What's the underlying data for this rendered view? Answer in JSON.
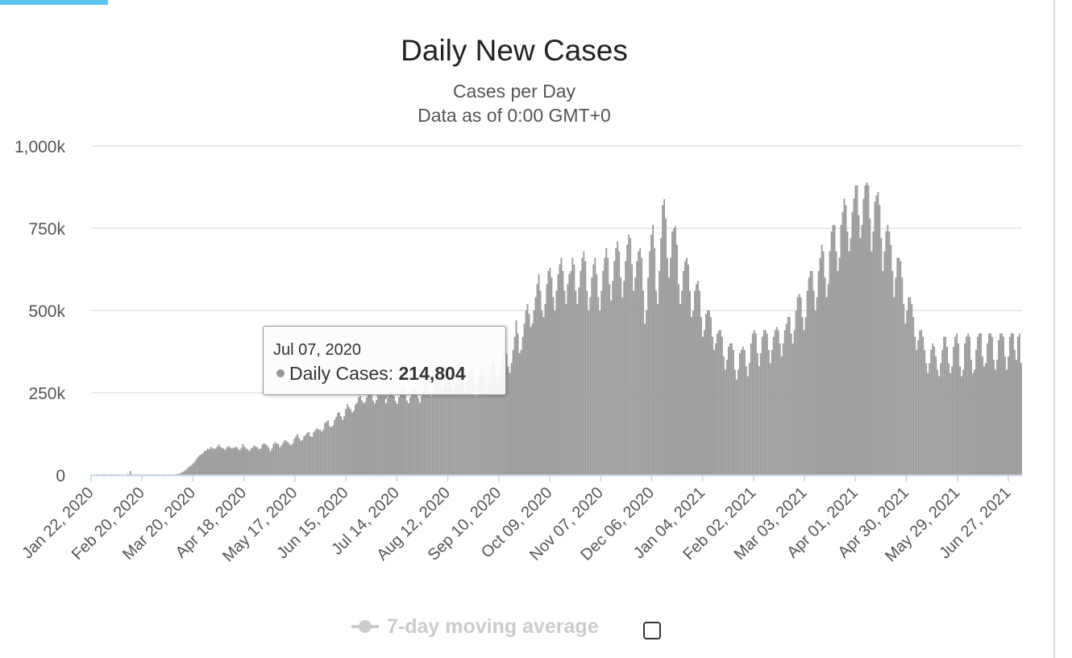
{
  "page": {
    "accent_color": "#5bc4f0"
  },
  "chart_data": {
    "type": "bar",
    "title": "Daily New Cases",
    "subtitle": "Cases per Day",
    "data_note": "Data as of 0:00 GMT+0",
    "xlabel": "",
    "ylabel": "",
    "ylim": [
      0,
      1000000
    ],
    "grid": true,
    "bar_color": "#999999",
    "y_ticks": [
      {
        "value": 0,
        "label": "0"
      },
      {
        "value": 250000,
        "label": "250k"
      },
      {
        "value": 500000,
        "label": "500k"
      },
      {
        "value": 750000,
        "label": "750k"
      },
      {
        "value": 1000000,
        "label": "1,000k"
      }
    ],
    "x_tick_labels": [
      "Jan 22, 2020",
      "Feb 20, 2020",
      "Mar 20, 2020",
      "Apr 18, 2020",
      "May 17, 2020",
      "Jun 15, 2020",
      "Jul 14, 2020",
      "Aug 12, 2020",
      "Sep 10, 2020",
      "Oct 09, 2020",
      "Nov 07, 2020",
      "Dec 06, 2020",
      "Jan 04, 2021",
      "Feb 02, 2021",
      "Mar 03, 2021",
      "Apr 01, 2021",
      "Apr 30, 2021",
      "May 29, 2021",
      "Jun 27, 2021"
    ],
    "series": [
      {
        "name": "Daily Cases",
        "values": [
          0,
          0,
          0,
          2000,
          1000,
          1000,
          2000,
          2000,
          2000,
          1000,
          1000,
          2000,
          2000,
          1000,
          2000,
          1000,
          2000,
          2000,
          1000,
          2000,
          1000,
          1000,
          3000,
          2000,
          12000,
          2000,
          1000,
          2000,
          2000,
          1000,
          2000,
          1000,
          1000,
          2000,
          2000,
          1000,
          2000,
          2000,
          1000,
          2000,
          1000,
          2000,
          2000,
          1000,
          2000,
          2000,
          1000,
          1000,
          2000,
          1000,
          1000,
          2000,
          2000,
          3000,
          3000,
          5000,
          8000,
          10000,
          14000,
          18000,
          23000,
          27000,
          30000,
          35000,
          40000,
          48000,
          55000,
          60000,
          62000,
          65000,
          72000,
          74000,
          80000,
          78000,
          85000,
          82000,
          80000,
          80000,
          86000,
          92000,
          85000,
          82000,
          80000,
          76000,
          84000,
          88000,
          84000,
          80000,
          82000,
          84000,
          86000,
          80000,
          76000,
          82000,
          94000,
          86000,
          80000,
          78000,
          72000,
          80000,
          84000,
          90000,
          86000,
          84000,
          78000,
          80000,
          92000,
          96000,
          94000,
          90000,
          84000,
          72000,
          80000,
          94000,
          100000,
          96000,
          94000,
          84000,
          90000,
          98000,
          106000,
          104000,
          100000,
          94000,
          90000,
          96000,
          110000,
          118000,
          124000,
          112000,
          104000,
          106000,
          118000,
          122000,
          128000,
          130000,
          118000,
          116000,
          130000,
          136000,
          142000,
          138000,
          138000,
          132000,
          138000,
          158000,
          162000,
          166000,
          148000,
          146000,
          150000,
          168000,
          176000,
          188000,
          190000,
          178000,
          168000,
          178000,
          200000,
          214804,
          206000,
          200000,
          190000,
          196000,
          214000,
          220000,
          236000,
          240000,
          226000,
          218000,
          222000,
          236000,
          246000,
          250000,
          244000,
          226000,
          218000,
          228000,
          244000,
          260000,
          250000,
          244000,
          226000,
          218000,
          234000,
          248000,
          260000,
          256000,
          240000,
          224000,
          216000,
          236000,
          254000,
          268000,
          264000,
          242000,
          226000,
          218000,
          236000,
          252000,
          264000,
          268000,
          256000,
          234000,
          220000,
          240000,
          258000,
          280000,
          290000,
          270000,
          250000,
          240000,
          258000,
          276000,
          290000,
          300000,
          286000,
          264000,
          250000,
          268000,
          290000,
          304000,
          314000,
          296000,
          270000,
          256000,
          274000,
          296000,
          312000,
          324000,
          304000,
          276000,
          260000,
          280000,
          300000,
          316000,
          326000,
          312000,
          276000,
          240000,
          284000,
          300000,
          318000,
          326000,
          300000,
          274000,
          264000,
          290000,
          316000,
          340000,
          354000,
          334000,
          300000,
          284000,
          320000,
          350000,
          380000,
          390000,
          368000,
          330000,
          310000,
          340000,
          380000,
          420000,
          470000,
          430000,
          370000,
          380000,
          420000,
          460000,
          500000,
          520000,
          490000,
          450000,
          460000,
          500000,
          540000,
          580000,
          610000,
          560000,
          500000,
          480000,
          520000,
          580000,
          620000,
          630000,
          600000,
          540000,
          500000,
          560000,
          610000,
          640000,
          660000,
          620000,
          560000,
          520000,
          580000,
          610000,
          620000,
          660000,
          640000,
          560000,
          520000,
          570000,
          620000,
          660000,
          680000,
          650000,
          560000,
          500000,
          540000,
          600000,
          640000,
          660000,
          610000,
          540000,
          500000,
          560000,
          620000,
          660000,
          690000,
          660000,
          580000,
          530000,
          590000,
          650000,
          690000,
          710000,
          680000,
          600000,
          540000,
          590000,
          650000,
          700000,
          730000,
          720000,
          640000,
          560000,
          600000,
          650000,
          680000,
          690000,
          660000,
          560000,
          460000,
          500000,
          600000,
          680000,
          730000,
          760000,
          690000,
          560000,
          520000,
          620000,
          720000,
          820000,
          838000,
          780000,
          660000,
          600000,
          660000,
          740000,
          750000,
          756000,
          700000,
          580000,
          520000,
          560000,
          620000,
          650000,
          660000,
          640000,
          560000,
          480000,
          500000,
          560000,
          580000,
          590000,
          560000,
          480000,
          420000,
          440000,
          490000,
          500000,
          500000,
          480000,
          420000,
          380000,
          400000,
          430000,
          440000,
          440000,
          420000,
          360000,
          320000,
          350000,
          390000,
          400000,
          400000,
          380000,
          320000,
          290000,
          320000,
          370000,
          380000,
          390000,
          380000,
          330000,
          300000,
          340000,
          400000,
          430000,
          440000,
          430000,
          370000,
          330000,
          370000,
          420000,
          440000,
          440000,
          430000,
          380000,
          340000,
          380000,
          420000,
          440000,
          450000,
          440000,
          400000,
          360000,
          400000,
          440000,
          460000,
          480000,
          480000,
          430000,
          400000,
          440000,
          500000,
          540000,
          550000,
          540000,
          480000,
          440000,
          480000,
          560000,
          600000,
          620000,
          620000,
          560000,
          500000,
          540000,
          620000,
          660000,
          700000,
          680000,
          600000,
          540000,
          580000,
          680000,
          740000,
          760000,
          760000,
          680000,
          620000,
          660000,
          760000,
          800000,
          840000,
          820000,
          740000,
          680000,
          720000,
          800000,
          840000,
          880000,
          880000,
          790000,
          720000,
          760000,
          840000,
          880000,
          890000,
          880000,
          780000,
          680000,
          740000,
          830000,
          850000,
          860000,
          820000,
          720000,
          620000,
          680000,
          740000,
          760000,
          740000,
          700000,
          620000,
          540000,
          600000,
          660000,
          660000,
          650000,
          600000,
          520000,
          460000,
          500000,
          540000,
          540000,
          520000,
          480000,
          420000,
          380000,
          410000,
          440000,
          440000,
          420000,
          380000,
          340000,
          310000,
          340000,
          380000,
          400000,
          390000,
          360000,
          320000,
          300000,
          340000,
          380000,
          420000,
          420000,
          390000,
          340000,
          310000,
          330000,
          390000,
          420000,
          430000,
          400000,
          330000,
          300000,
          320000,
          400000,
          420000,
          430000,
          420000,
          350000,
          310000,
          320000,
          380000,
          420000,
          430000,
          430000,
          360000,
          330000,
          340000,
          400000,
          430000,
          430000,
          420000,
          350000,
          320000,
          350000,
          410000,
          430000,
          430000,
          420000,
          360000,
          320000,
          360000,
          420000,
          430000,
          430000,
          380000,
          350000,
          420000,
          430000,
          340000
        ]
      }
    ],
    "highlight": {
      "date": "Jul 07, 2020",
      "series_label": "Daily Cases:",
      "value": "214,804"
    },
    "legend": {
      "label": "7-day moving average",
      "placement": "bottom-center",
      "enabled": false,
      "color": "#cccccc"
    }
  }
}
